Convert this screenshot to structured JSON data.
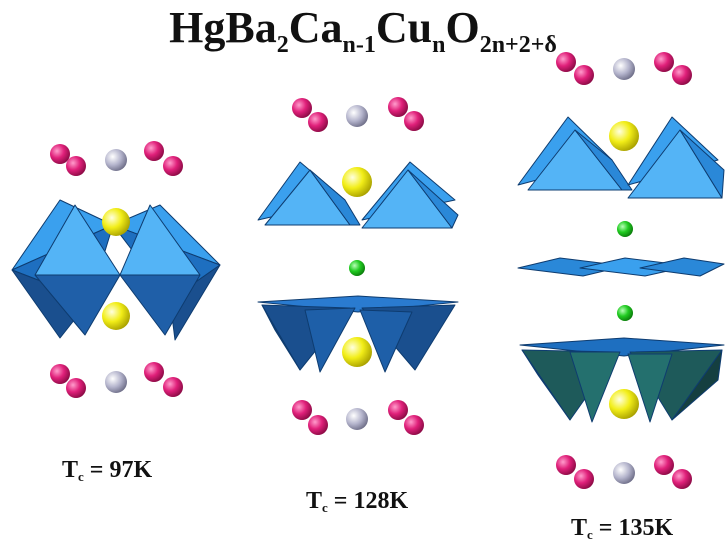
{
  "title": {
    "parts": [
      {
        "text": "HgBa",
        "sub": false
      },
      {
        "text": "2",
        "sub": true
      },
      {
        "text": "Ca",
        "sub": false
      },
      {
        "text": "n-1",
        "sub": true
      },
      {
        "text": "Cu",
        "sub": false
      },
      {
        "text": "n",
        "sub": true
      },
      {
        "text": "O",
        "sub": false
      },
      {
        "text": "2n+2+δ",
        "sub": true
      }
    ]
  },
  "structures": [
    {
      "n": 1,
      "tc_prefix": "T",
      "tc_sub": "c",
      "tc_value": " = 97K"
    },
    {
      "n": 2,
      "tc_prefix": "T",
      "tc_sub": "c",
      "tc_value": " = 128K"
    },
    {
      "n": 3,
      "tc_prefix": "T",
      "tc_sub": "c",
      "tc_value": " = 135K"
    }
  ],
  "colors": {
    "hg_atom": "#b0b0c8",
    "ba_atom": "#e0207a",
    "ca_atom": "#22cc22",
    "apical_atom": "#f2ee18",
    "polyhedron_light": "#3aa0ee",
    "polyhedron_dark": "#1e5fa8",
    "pyramid_dark": "#1a4f8e",
    "pyramid_teal": "#1e5a5a"
  }
}
